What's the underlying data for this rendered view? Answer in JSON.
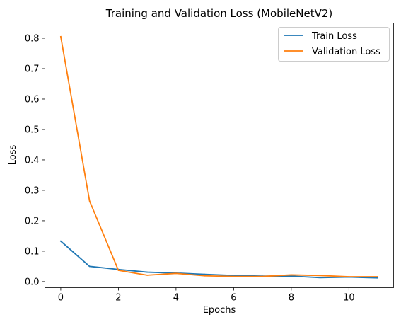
{
  "chart_data": {
    "type": "line",
    "title": "Training and Validation Loss (MobileNetV2)",
    "xlabel": "Epochs",
    "ylabel": "Loss",
    "xlim": [
      -0.55,
      11.55
    ],
    "ylim": [
      -0.02,
      0.85
    ],
    "xticks": [
      0,
      2,
      4,
      6,
      8,
      10
    ],
    "yticks": [
      0.0,
      0.1,
      0.2,
      0.3,
      0.4,
      0.5,
      0.6,
      0.7,
      0.8
    ],
    "grid": false,
    "legend_position": "top-right",
    "x": [
      0,
      1,
      2,
      3,
      4,
      5,
      6,
      7,
      8,
      9,
      10,
      11
    ],
    "series": [
      {
        "name": "Train Loss",
        "color": "#1f77b4",
        "values": [
          0.133,
          0.05,
          0.04,
          0.031,
          0.028,
          0.024,
          0.02,
          0.018,
          0.018,
          0.013,
          0.015,
          0.012
        ]
      },
      {
        "name": "Validation Loss",
        "color": "#ff7f0e",
        "values": [
          0.805,
          0.265,
          0.037,
          0.021,
          0.027,
          0.019,
          0.017,
          0.017,
          0.022,
          0.02,
          0.016,
          0.016
        ]
      }
    ]
  }
}
